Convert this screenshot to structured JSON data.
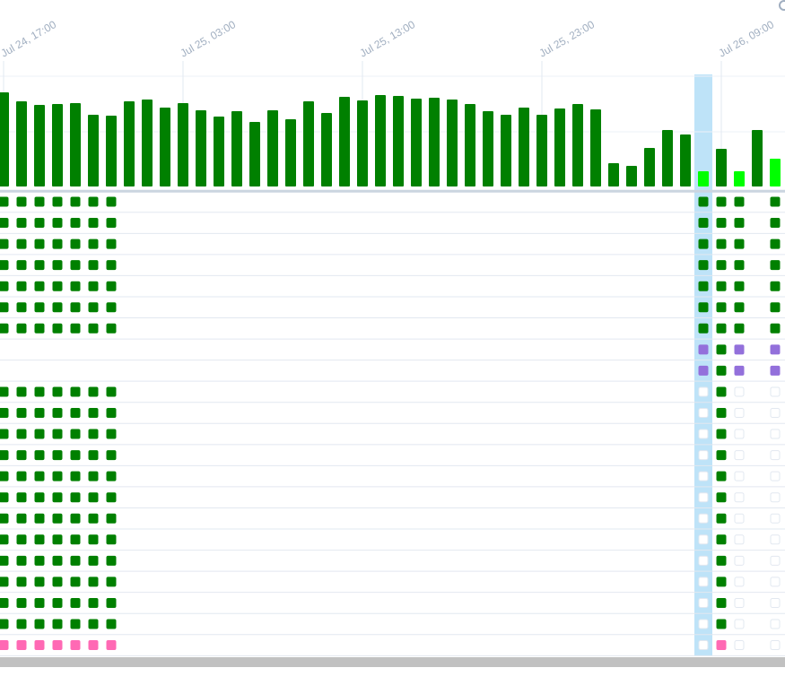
{
  "time_labels": [
    "Jul 24, 17:00",
    "Jul 25, 03:00",
    "Jul 25, 13:00",
    "Jul 25, 23:00",
    "Jul 26, 09:00"
  ],
  "selected_run": 39,
  "state_colors": {
    "success": "#008000",
    "running": "#00ff00",
    "skipped": "#ff69b4",
    "deferred": "#9370db",
    "none": "#ffffff"
  },
  "runs": [
    {
      "duration": 105,
      "state": "success",
      "tasks": [
        "success",
        "success",
        "success",
        "success",
        "success",
        "success",
        "success",
        null,
        null,
        "success",
        "success",
        "success",
        "success",
        "success",
        "success",
        "success",
        "success",
        "success",
        "success",
        "success",
        "success",
        "skipped"
      ]
    },
    {
      "duration": 95,
      "state": "success",
      "tasks": [
        "success",
        "success",
        "success",
        "success",
        "success",
        "success",
        "success",
        null,
        null,
        "success",
        "success",
        "success",
        "success",
        "success",
        "success",
        "success",
        "success",
        "success",
        "success",
        "success",
        "success",
        "skipped"
      ]
    },
    {
      "duration": 91,
      "state": "success",
      "tasks": [
        "success",
        "success",
        "success",
        "success",
        "success",
        "success",
        "success",
        null,
        null,
        "success",
        "success",
        "success",
        "success",
        "success",
        "success",
        "success",
        "success",
        "success",
        "success",
        "success",
        "success",
        "skipped"
      ]
    },
    {
      "duration": 92,
      "state": "success",
      "tasks": [
        "success",
        "success",
        "success",
        "success",
        "success",
        "success",
        "success",
        null,
        null,
        "success",
        "success",
        "success",
        "success",
        "success",
        "success",
        "success",
        "success",
        "success",
        "success",
        "success",
        "success",
        "skipped"
      ]
    },
    {
      "duration": 93,
      "state": "success",
      "tasks": [
        "success",
        "success",
        "success",
        "success",
        "success",
        "success",
        "success",
        null,
        null,
        "success",
        "success",
        "success",
        "success",
        "success",
        "success",
        "success",
        "success",
        "success",
        "success",
        "success",
        "success",
        "skipped"
      ]
    },
    {
      "duration": 80,
      "state": "success",
      "tasks": [
        "success",
        "success",
        "success",
        "success",
        "success",
        "success",
        "success",
        null,
        null,
        "success",
        "success",
        "success",
        "success",
        "success",
        "success",
        "success",
        "success",
        "success",
        "success",
        "success",
        "success",
        "skipped"
      ]
    },
    {
      "duration": 79,
      "state": "success",
      "tasks": [
        "success",
        "success",
        "success",
        "success",
        "success",
        "success",
        "success",
        null,
        null,
        "success",
        "success",
        "success",
        "success",
        "success",
        "success",
        "success",
        "success",
        "success",
        "success",
        "success",
        "success",
        "skipped"
      ]
    },
    {
      "duration": 95,
      "state": "success",
      "tasks": []
    },
    {
      "duration": 97,
      "state": "success",
      "tasks": []
    },
    {
      "duration": 88,
      "state": "success",
      "tasks": []
    },
    {
      "duration": 93,
      "state": "success",
      "tasks": []
    },
    {
      "duration": 85,
      "state": "success",
      "tasks": []
    },
    {
      "duration": 78,
      "state": "success",
      "tasks": []
    },
    {
      "duration": 84,
      "state": "success",
      "tasks": []
    },
    {
      "duration": 72,
      "state": "success",
      "tasks": []
    },
    {
      "duration": 85,
      "state": "success",
      "tasks": []
    },
    {
      "duration": 75,
      "state": "success",
      "tasks": []
    },
    {
      "duration": 95,
      "state": "success",
      "tasks": []
    },
    {
      "duration": 82,
      "state": "success",
      "tasks": []
    },
    {
      "duration": 100,
      "state": "success",
      "tasks": []
    },
    {
      "duration": 96,
      "state": "success",
      "tasks": []
    },
    {
      "duration": 102,
      "state": "success",
      "tasks": []
    },
    {
      "duration": 101,
      "state": "success",
      "tasks": []
    },
    {
      "duration": 98,
      "state": "success",
      "tasks": []
    },
    {
      "duration": 99,
      "state": "success",
      "tasks": []
    },
    {
      "duration": 97,
      "state": "success",
      "tasks": []
    },
    {
      "duration": 92,
      "state": "success",
      "tasks": []
    },
    {
      "duration": 84,
      "state": "success",
      "tasks": []
    },
    {
      "duration": 80,
      "state": "success",
      "tasks": []
    },
    {
      "duration": 88,
      "state": "success",
      "tasks": []
    },
    {
      "duration": 80,
      "state": "success",
      "tasks": []
    },
    {
      "duration": 87,
      "state": "success",
      "tasks": []
    },
    {
      "duration": 92,
      "state": "success",
      "tasks": []
    },
    {
      "duration": 86,
      "state": "success",
      "tasks": []
    },
    {
      "duration": 26,
      "state": "success",
      "tasks": []
    },
    {
      "duration": 23,
      "state": "success",
      "tasks": []
    },
    {
      "duration": 43,
      "state": "success",
      "tasks": []
    },
    {
      "duration": 63,
      "state": "success",
      "tasks": []
    },
    {
      "duration": 58,
      "state": "success",
      "tasks": []
    },
    {
      "duration": 17,
      "state": "running",
      "tasks": [
        "success",
        "success",
        "success",
        "success",
        "success",
        "success",
        "success",
        "deferred",
        "deferred",
        "none",
        "none",
        "none",
        "none",
        "none",
        "none",
        "none",
        "none",
        "none",
        "none",
        "none",
        "none",
        "none"
      ]
    },
    {
      "duration": 42,
      "state": "success",
      "tasks": [
        "success",
        "success",
        "success",
        "success",
        "success",
        "success",
        "success",
        "success",
        "success",
        "success",
        "success",
        "success",
        "success",
        "success",
        "success",
        "success",
        "success",
        "success",
        "success",
        "success",
        "success",
        "skipped"
      ]
    },
    {
      "duration": 17,
      "state": "running",
      "tasks": [
        "success",
        "success",
        "success",
        "success",
        "success",
        "success",
        "success",
        "deferred",
        "deferred",
        "none",
        "none",
        "none",
        "none",
        "none",
        "none",
        "none",
        "none",
        "none",
        "none",
        "none",
        "none",
        "none"
      ]
    },
    {
      "duration": 63,
      "state": "success",
      "tasks": []
    },
    {
      "duration": 31,
      "state": "running",
      "tasks": [
        "success",
        "success",
        "success",
        "success",
        "success",
        "success",
        "success",
        "deferred",
        "deferred",
        "none",
        "none",
        "none",
        "none",
        "none",
        "none",
        "none",
        "none",
        "none",
        "none",
        "none",
        "none",
        "none"
      ]
    }
  ]
}
